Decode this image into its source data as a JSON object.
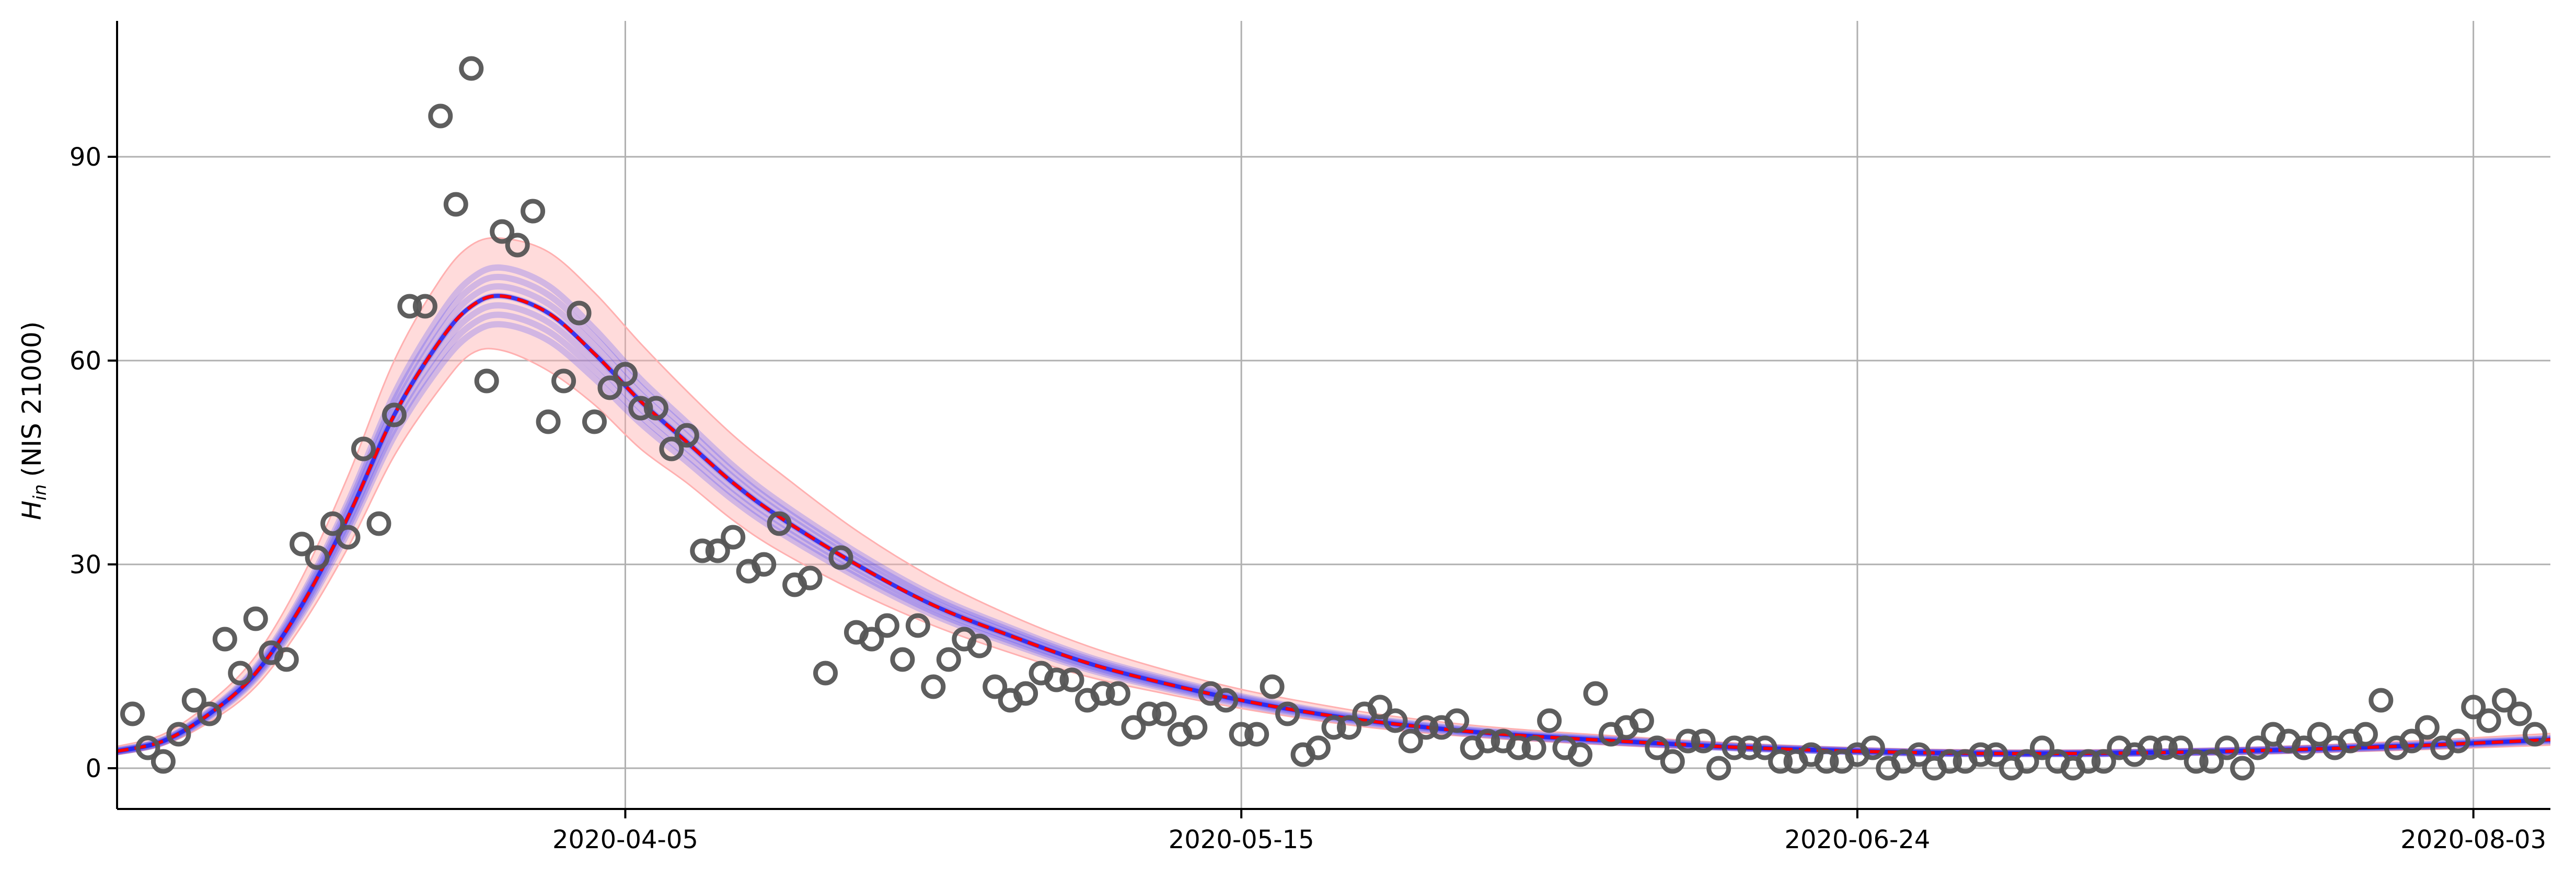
{
  "chart_data": {
    "type": "scatter",
    "title": "",
    "xlabel": "",
    "ylabel": {
      "symbol": "H",
      "subscript": "in",
      "text": "(NIS 21000)"
    },
    "x_tick_labels": [
      "2020-04-05",
      "2020-05-15",
      "2020-06-24",
      "2020-08-03"
    ],
    "y_ticks": [
      0,
      30,
      60,
      90
    ],
    "y_tick_labels": [
      "0",
      "30",
      "60",
      "90"
    ],
    "xlim": [
      "2020-03-03",
      "2020-08-08"
    ],
    "ylim": [
      -6,
      110
    ],
    "grid": true,
    "colors": {
      "points": "#555555",
      "fit_line": "#ff0000",
      "ensemble": "#3333ff",
      "band": "#ffb0b0",
      "grid": "#b0b0b0"
    },
    "series": [
      {
        "kind": "observed",
        "x": [
          "2020-03-04",
          "2020-03-05",
          "2020-03-06",
          "2020-03-07",
          "2020-03-08",
          "2020-03-09",
          "2020-03-10",
          "2020-03-11",
          "2020-03-12",
          "2020-03-13",
          "2020-03-14",
          "2020-03-15",
          "2020-03-16",
          "2020-03-17",
          "2020-03-18",
          "2020-03-19",
          "2020-03-20",
          "2020-03-21",
          "2020-03-22",
          "2020-03-23",
          "2020-03-24",
          "2020-03-25",
          "2020-03-26",
          "2020-03-27",
          "2020-03-28",
          "2020-03-29",
          "2020-03-30",
          "2020-03-31",
          "2020-04-01",
          "2020-04-02",
          "2020-04-03",
          "2020-04-04",
          "2020-04-05",
          "2020-04-06",
          "2020-04-07",
          "2020-04-08",
          "2020-04-09",
          "2020-04-10",
          "2020-04-11",
          "2020-04-12",
          "2020-04-13",
          "2020-04-14",
          "2020-04-15",
          "2020-04-16",
          "2020-04-17",
          "2020-04-18",
          "2020-04-19",
          "2020-04-20",
          "2020-04-21",
          "2020-04-22",
          "2020-04-23",
          "2020-04-24",
          "2020-04-25",
          "2020-04-26",
          "2020-04-27",
          "2020-04-28",
          "2020-04-29",
          "2020-04-30",
          "2020-05-01",
          "2020-05-02",
          "2020-05-03",
          "2020-05-04",
          "2020-05-05",
          "2020-05-06",
          "2020-05-07",
          "2020-05-08",
          "2020-05-09",
          "2020-05-10",
          "2020-05-11",
          "2020-05-12",
          "2020-05-13",
          "2020-05-14",
          "2020-05-15",
          "2020-05-16",
          "2020-05-17",
          "2020-05-18",
          "2020-05-19",
          "2020-05-20",
          "2020-05-21",
          "2020-05-22",
          "2020-05-23",
          "2020-05-24",
          "2020-05-25",
          "2020-05-26",
          "2020-05-27",
          "2020-05-28",
          "2020-05-29",
          "2020-05-30",
          "2020-05-31",
          "2020-06-01",
          "2020-06-02",
          "2020-06-03",
          "2020-06-04",
          "2020-06-05",
          "2020-06-06",
          "2020-06-07",
          "2020-06-08",
          "2020-06-09",
          "2020-06-10",
          "2020-06-11",
          "2020-06-12",
          "2020-06-13",
          "2020-06-14",
          "2020-06-15",
          "2020-06-16",
          "2020-06-17",
          "2020-06-18",
          "2020-06-19",
          "2020-06-20",
          "2020-06-21",
          "2020-06-22",
          "2020-06-23",
          "2020-06-24",
          "2020-06-25",
          "2020-06-26",
          "2020-06-27",
          "2020-06-28",
          "2020-06-29",
          "2020-06-30",
          "2020-07-01",
          "2020-07-02",
          "2020-07-03",
          "2020-07-04",
          "2020-07-05",
          "2020-07-06",
          "2020-07-07",
          "2020-07-08",
          "2020-07-09",
          "2020-07-10",
          "2020-07-11",
          "2020-07-12",
          "2020-07-13",
          "2020-07-14",
          "2020-07-15",
          "2020-07-16",
          "2020-07-17",
          "2020-07-18",
          "2020-07-19",
          "2020-07-20",
          "2020-07-21",
          "2020-07-22",
          "2020-07-23",
          "2020-07-24",
          "2020-07-25",
          "2020-07-26",
          "2020-07-27",
          "2020-07-28",
          "2020-07-29",
          "2020-07-30",
          "2020-07-31",
          "2020-08-01",
          "2020-08-02",
          "2020-08-03",
          "2020-08-04",
          "2020-08-05",
          "2020-08-06",
          "2020-08-07"
        ],
        "y": [
          8,
          3,
          1,
          5,
          10,
          8,
          19,
          14,
          22,
          17,
          16,
          33,
          31,
          36,
          34,
          47,
          36,
          52,
          68,
          68,
          96,
          83,
          103,
          57,
          79,
          77,
          82,
          51,
          57,
          67,
          51,
          56,
          58,
          53,
          53,
          47,
          49,
          32,
          32,
          34,
          29,
          30,
          36,
          27,
          28,
          14,
          31,
          20,
          19,
          21,
          16,
          21,
          12,
          16,
          19,
          18,
          12,
          10,
          11,
          14,
          13,
          13,
          10,
          11,
          11,
          6,
          8,
          8,
          5,
          6,
          11,
          10,
          5,
          5,
          12,
          8,
          2,
          3,
          6,
          6,
          8,
          9,
          7,
          4,
          6,
          6,
          7,
          3,
          4,
          4,
          3,
          3,
          7,
          3,
          2,
          11,
          5,
          6,
          7,
          3,
          1,
          4,
          4,
          0,
          3,
          3,
          3,
          1,
          1,
          2,
          1,
          1,
          2,
          3,
          0,
          1,
          2,
          0,
          1,
          1,
          2,
          2,
          0,
          1,
          3,
          1,
          0,
          1,
          1,
          3,
          2,
          3,
          3,
          3,
          1,
          1,
          3,
          0,
          3,
          5,
          4,
          3,
          5,
          3,
          4,
          5,
          10,
          3,
          4,
          6,
          3,
          4,
          9,
          7,
          10,
          8,
          5
        ]
      },
      {
        "kind": "fit",
        "x": [
          "2020-03-03",
          "2020-03-06",
          "2020-03-09",
          "2020-03-12",
          "2020-03-15",
          "2020-03-18",
          "2020-03-21",
          "2020-03-24",
          "2020-03-26",
          "2020-03-28",
          "2020-03-31",
          "2020-04-03",
          "2020-04-06",
          "2020-04-09",
          "2020-04-12",
          "2020-04-15",
          "2020-04-20",
          "2020-04-25",
          "2020-04-30",
          "2020-05-05",
          "2020-05-10",
          "2020-05-15",
          "2020-05-20",
          "2020-05-25",
          "2020-06-01",
          "2020-06-10",
          "2020-06-17",
          "2020-06-24",
          "2020-07-01",
          "2020-07-10",
          "2020-07-20",
          "2020-07-30",
          "2020-08-08"
        ],
        "y": [
          2.5,
          4,
          8,
          14,
          24,
          37,
          52,
          63,
          68,
          69.5,
          67,
          61,
          54,
          48,
          42,
          37,
          30,
          24,
          19.5,
          15.5,
          12.5,
          10,
          8,
          6.5,
          5,
          3.8,
          3,
          2.5,
          2.2,
          2.2,
          2.6,
          3.3,
          4.2
        ]
      }
    ],
    "band": {
      "lower": [
        2,
        3.4,
        6.8,
        12,
        21,
        32.5,
        46,
        56,
        61,
        61.5,
        58.5,
        53.5,
        47,
        42,
        36.5,
        32,
        26,
        21,
        17,
        13.5,
        11,
        8.8,
        7,
        5.6,
        4.3,
        3.2,
        2.6,
        2.1,
        1.8,
        1.8,
        2.1,
        2.7,
        3.4
      ],
      "upper": [
        3.2,
        5,
        9.6,
        16.5,
        28,
        43,
        60,
        72,
        77,
        78,
        76,
        70,
        62.5,
        55.5,
        49,
        43.5,
        35,
        28,
        22.5,
        18,
        14.5,
        11.6,
        9.4,
        7.6,
        5.9,
        4.5,
        3.6,
        3,
        2.7,
        2.7,
        3.1,
        4,
        5.1
      ]
    }
  }
}
